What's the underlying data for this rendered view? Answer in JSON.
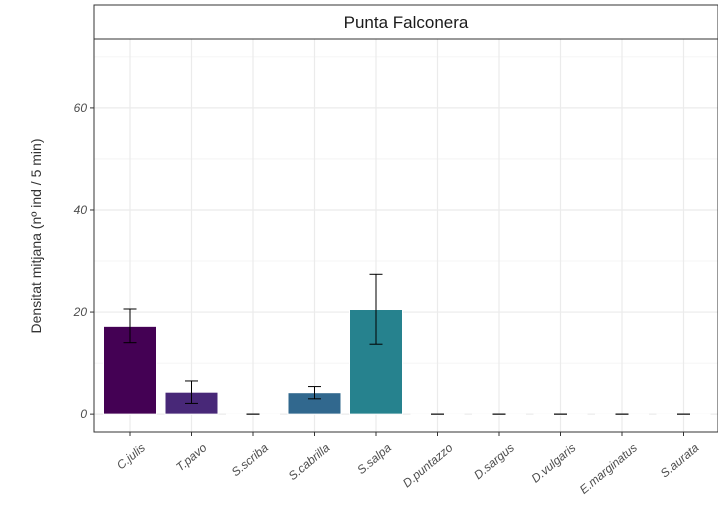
{
  "chart_data": {
    "type": "bar",
    "facet_title": "Punta Falconera",
    "ylabel": "Densitat mitjana  (nº ind / 5 min)",
    "xlabel": "",
    "ylim": [
      -3.5,
      73.5
    ],
    "yticks": [
      0,
      20,
      40,
      60
    ],
    "grid": true,
    "categories": [
      "C.julis",
      "T.pavo",
      "S.scriba",
      "S.cabrilla",
      "S.salpa",
      "D.puntazzo",
      "D.sargus",
      "D.vulgaris",
      "E.marginatus",
      "S.aurata"
    ],
    "values": [
      17.2,
      4.3,
      0,
      4.2,
      20.5,
      0,
      0,
      0,
      0,
      0
    ],
    "error_low": [
      14.0,
      2.1,
      0,
      3.0,
      13.7,
      0,
      0,
      0,
      0,
      0
    ],
    "error_high": [
      20.6,
      6.5,
      0,
      5.4,
      27.4,
      0,
      0,
      0,
      0,
      0
    ],
    "colors": [
      "#440154",
      "#482878",
      "#3e4a89",
      "#31688e",
      "#26828e",
      "#1f9e89",
      "#35b779",
      "#6ece58",
      "#b5de2b",
      "#fde725"
    ]
  }
}
